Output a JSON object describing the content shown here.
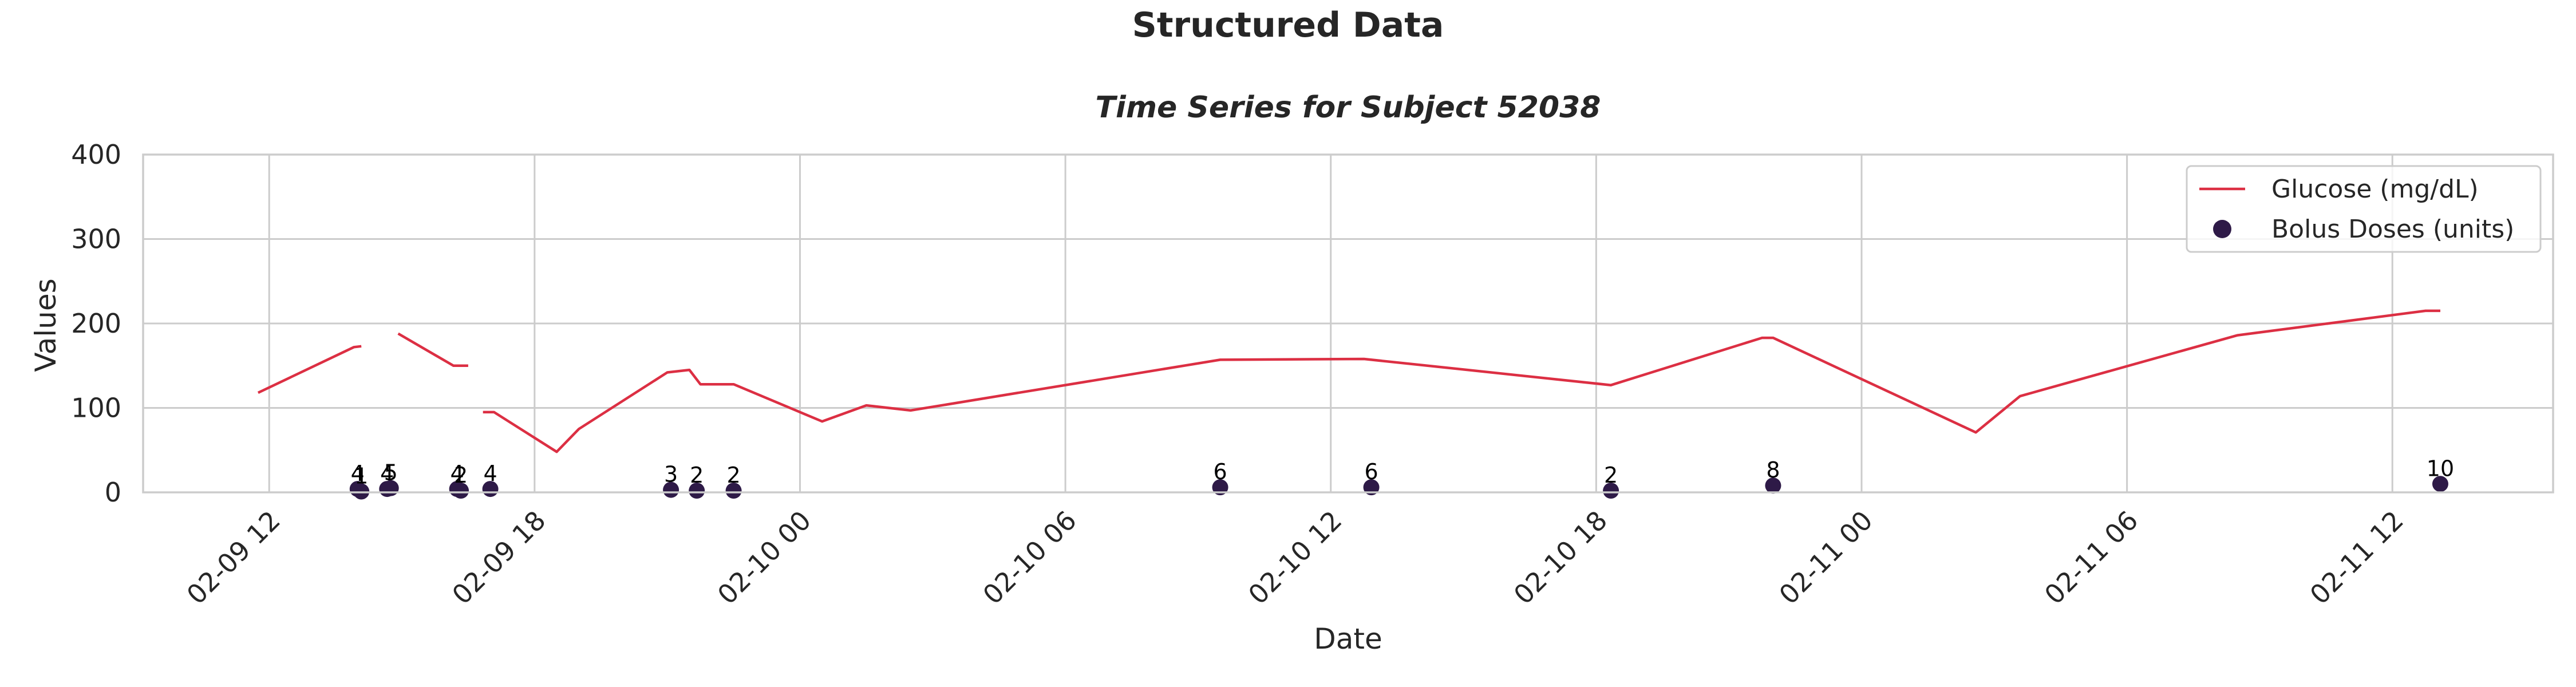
{
  "figure_title": "Structured Data",
  "chart_data": {
    "type": "line",
    "title": "Time Series for Subject 52038",
    "xlabel": "Date",
    "ylabel": "Values",
    "ylim": [
      0,
      400
    ],
    "xlim": [
      "2022-02-09 09:09",
      "2022-02-11 15:38"
    ],
    "y_ticks": [
      0,
      100,
      200,
      300,
      400
    ],
    "x_ticks": [
      {
        "t": "2022-02-09 12:00",
        "label": "02-09 12"
      },
      {
        "t": "2022-02-09 18:00",
        "label": "02-09 18"
      },
      {
        "t": "2022-02-10 00:00",
        "label": "02-10 00"
      },
      {
        "t": "2022-02-10 06:00",
        "label": "02-10 06"
      },
      {
        "t": "2022-02-10 12:00",
        "label": "02-10 12"
      },
      {
        "t": "2022-02-10 18:00",
        "label": "02-10 18"
      },
      {
        "t": "2022-02-11 00:00",
        "label": "02-11 00"
      },
      {
        "t": "2022-02-11 06:00",
        "label": "02-11 06"
      },
      {
        "t": "2022-02-11 12:00",
        "label": "02-11 12"
      }
    ],
    "grid": true,
    "legend_position": "top-right",
    "series": [
      {
        "name": "Glucose (mg/dL)",
        "type": "line",
        "color": "#dc2f43",
        "segments": [
          [
            {
              "t": "2022-02-09 11:45",
              "y": 118
            },
            {
              "t": "2022-02-09 13:55",
              "y": 172
            },
            {
              "t": "2022-02-09 14:05",
              "y": 173
            }
          ],
          [
            {
              "t": "2022-02-09 14:55",
              "y": 188
            },
            {
              "t": "2022-02-09 16:10",
              "y": 150
            },
            {
              "t": "2022-02-09 16:30",
              "y": 150
            }
          ],
          [
            {
              "t": "2022-02-09 16:50",
              "y": 95
            },
            {
              "t": "2022-02-09 17:05",
              "y": 95
            },
            {
              "t": "2022-02-09 18:30",
              "y": 48
            },
            {
              "t": "2022-02-09 19:00",
              "y": 75
            },
            {
              "t": "2022-02-09 21:00",
              "y": 142
            },
            {
              "t": "2022-02-09 21:30",
              "y": 145
            },
            {
              "t": "2022-02-09 21:45",
              "y": 128
            },
            {
              "t": "2022-02-09 22:30",
              "y": 128
            },
            {
              "t": "2022-02-10 00:30",
              "y": 84
            },
            {
              "t": "2022-02-10 01:30",
              "y": 103
            },
            {
              "t": "2022-02-10 02:30",
              "y": 97
            },
            {
              "t": "2022-02-10 09:30",
              "y": 157
            },
            {
              "t": "2022-02-10 12:45",
              "y": 158
            },
            {
              "t": "2022-02-10 18:20",
              "y": 127
            },
            {
              "t": "2022-02-10 21:45",
              "y": 183
            },
            {
              "t": "2022-02-10 22:00",
              "y": 183
            },
            {
              "t": "2022-02-11 02:35",
              "y": 71
            },
            {
              "t": "2022-02-11 03:35",
              "y": 114
            },
            {
              "t": "2022-02-11 08:30",
              "y": 186
            },
            {
              "t": "2022-02-11 12:45",
              "y": 215
            },
            {
              "t": "2022-02-11 13:05",
              "y": 215
            }
          ]
        ]
      },
      {
        "name": "Bolus Doses (units)",
        "type": "scatter",
        "color": "#2e1a47",
        "points": [
          {
            "t": "2022-02-09 14:00",
            "y": 4,
            "label": "4"
          },
          {
            "t": "2022-02-09 14:05",
            "y": 1,
            "label": "1"
          },
          {
            "t": "2022-02-09 14:40",
            "y": 4,
            "label": "4"
          },
          {
            "t": "2022-02-09 14:45",
            "y": 5,
            "label": "5"
          },
          {
            "t": "2022-02-09 16:15",
            "y": 4,
            "label": "4"
          },
          {
            "t": "2022-02-09 16:20",
            "y": 2,
            "label": "2"
          },
          {
            "t": "2022-02-09 17:00",
            "y": 4,
            "label": "4"
          },
          {
            "t": "2022-02-09 21:05",
            "y": 3,
            "label": "3"
          },
          {
            "t": "2022-02-09 21:40",
            "y": 2,
            "label": "2"
          },
          {
            "t": "2022-02-09 22:30",
            "y": 2,
            "label": "2"
          },
          {
            "t": "2022-02-10 09:30",
            "y": 6,
            "label": "6"
          },
          {
            "t": "2022-02-10 12:55",
            "y": 6,
            "label": "6"
          },
          {
            "t": "2022-02-10 18:20",
            "y": 2,
            "label": "2"
          },
          {
            "t": "2022-02-10 22:00",
            "y": 8,
            "label": "8"
          },
          {
            "t": "2022-02-11 13:05",
            "y": 10,
            "label": "10"
          }
        ]
      }
    ]
  }
}
